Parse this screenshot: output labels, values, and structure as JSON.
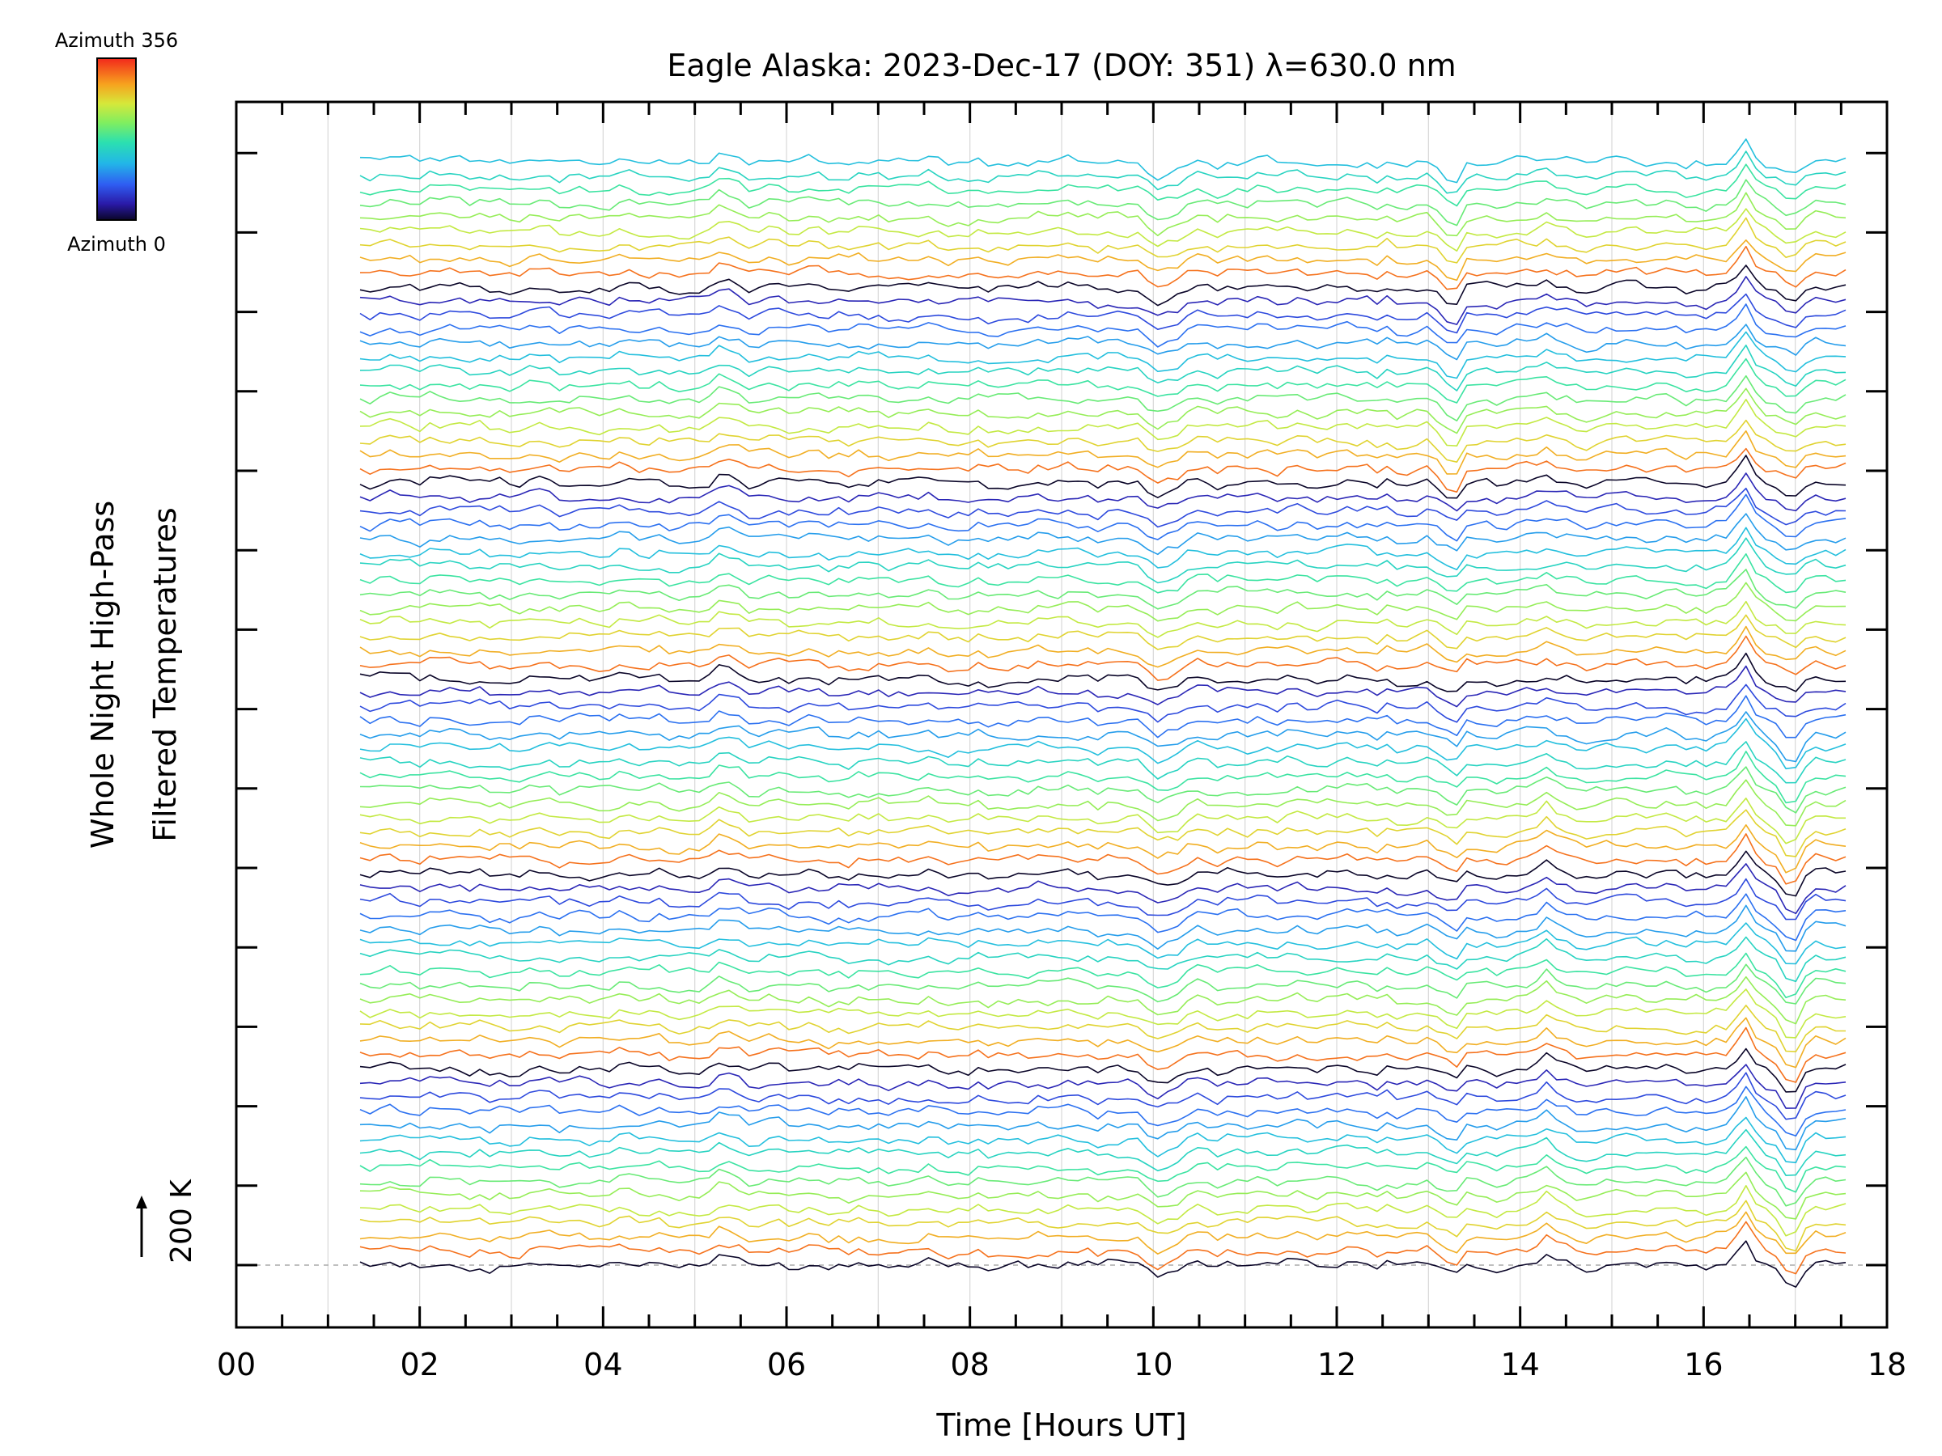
{
  "chart_data": {
    "type": "line",
    "title": "Eagle Alaska: 2023-Dec-17 (DOY: 351) λ=630.0 nm",
    "xlabel": "Time [Hours UT]",
    "ylabel": [
      "Whole Night High-Pass",
      "Filtered Temperatures"
    ],
    "xlim": [
      0,
      18
    ],
    "x_tick_labels": [
      "00",
      "02",
      "04",
      "06",
      "08",
      "10",
      "12",
      "14",
      "16",
      "18"
    ],
    "y_scale_label": "200 K",
    "y_scale_arrow": "up-arrow",
    "colorbar": {
      "top_label": "Azimuth 356",
      "bottom_label": "Azimuth 0",
      "colormap": "rainbow"
    },
    "data_start_hour": 1.35,
    "data_end_hour": 17.55,
    "n_series": 80,
    "n_groups": 6,
    "grid": "vertical",
    "baseline_dashed": true
  },
  "colors": {
    "background": "#ffffff",
    "axes": "#000000",
    "grid": "#d8d8d8",
    "baseline": "#aaaaaa"
  }
}
